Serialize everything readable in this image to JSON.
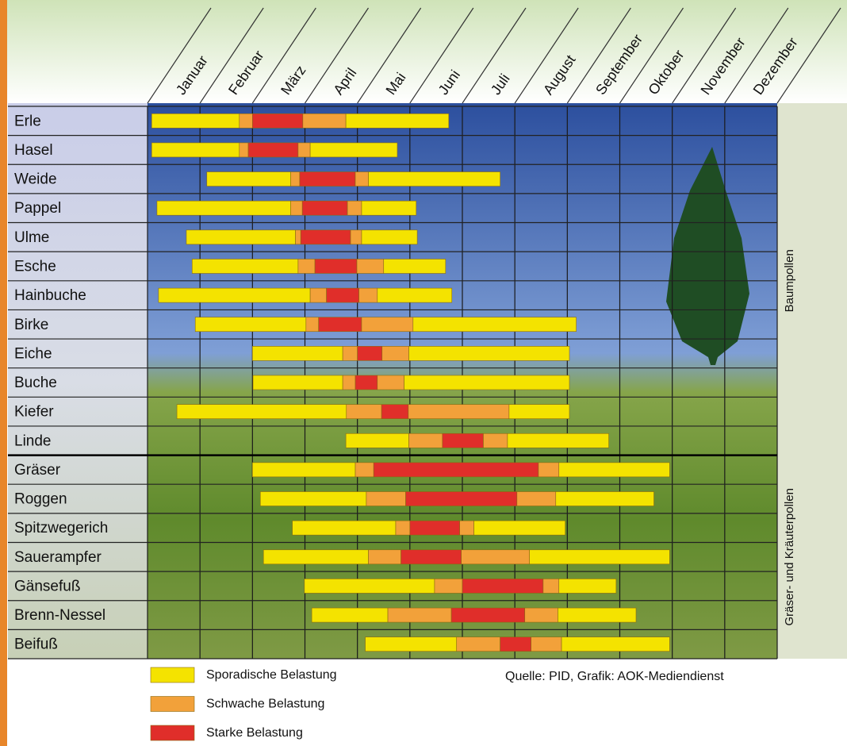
{
  "chart_data": {
    "type": "gantt",
    "categories": [
      "Januar",
      "Februar",
      "März",
      "April",
      "Mai",
      "Juni",
      "Juli",
      "August",
      "September",
      "Oktober",
      "November",
      "Dezember"
    ],
    "xlim": [
      0,
      12
    ],
    "series": [
      {
        "name": "Sporadische Belastung",
        "color": "#f4e300"
      },
      {
        "name": "Schwache Belastung",
        "color": "#f2a13a"
      },
      {
        "name": "Starke Belastung",
        "color": "#e02e2a"
      }
    ],
    "segment_levels": [
      0,
      1,
      2,
      1,
      0
    ],
    "groups": [
      {
        "name": "Baumpollen",
        "rows": [
          {
            "name": "Erle",
            "bounds": [
              0.08,
              1.75,
              2.0,
              2.96,
              3.78,
              5.74
            ]
          },
          {
            "name": "Hasel",
            "bounds": [
              0.08,
              1.75,
              1.92,
              2.87,
              3.1,
              4.76
            ]
          },
          {
            "name": "Weide",
            "bounds": [
              1.13,
              2.73,
              2.9,
              3.96,
              4.21,
              6.72
            ]
          },
          {
            "name": "Pappel",
            "bounds": [
              0.18,
              2.73,
              2.95,
              3.81,
              4.08,
              5.12
            ]
          },
          {
            "name": "Ulme",
            "bounds": [
              0.74,
              2.82,
              2.92,
              3.87,
              4.08,
              5.14
            ]
          },
          {
            "name": "Esche",
            "bounds": [
              0.85,
              2.87,
              3.19,
              3.99,
              4.5,
              5.68
            ]
          },
          {
            "name": "Hainbuche",
            "bounds": [
              0.21,
              3.1,
              3.41,
              4.03,
              4.38,
              5.8
            ]
          },
          {
            "name": "Birke",
            "bounds": [
              0.91,
              3.02,
              3.26,
              4.08,
              5.06,
              8.17
            ]
          },
          {
            "name": "Eiche",
            "bounds": [
              2.0,
              3.72,
              4.0,
              4.47,
              4.98,
              8.04
            ]
          },
          {
            "name": "Buche",
            "bounds": [
              2.01,
              3.72,
              3.96,
              4.38,
              4.89,
              8.04
            ]
          },
          {
            "name": "Kiefer",
            "bounds": [
              0.56,
              3.79,
              4.46,
              4.97,
              6.89,
              8.04
            ]
          },
          {
            "name": "Linde",
            "bounds": [
              3.78,
              4.98,
              5.62,
              6.4,
              6.86,
              8.79
            ]
          }
        ]
      },
      {
        "name": "Gräser- und Kräuterpollen",
        "rows": [
          {
            "name": "Gräser",
            "bounds": [
              2.0,
              3.96,
              4.31,
              7.45,
              7.84,
              9.95
            ]
          },
          {
            "name": "Roggen",
            "bounds": [
              2.15,
              4.17,
              4.92,
              7.04,
              7.78,
              9.65
            ]
          },
          {
            "name": "Spitzwegerich",
            "bounds": [
              2.76,
              4.73,
              5.0,
              5.95,
              6.22,
              7.96
            ]
          },
          {
            "name": "Sauerampfer",
            "bounds": [
              2.21,
              4.21,
              4.83,
              5.98,
              7.28,
              9.95
            ]
          },
          {
            "name": "Gänsefuß",
            "bounds": [
              2.99,
              5.47,
              6.0,
              7.54,
              7.84,
              8.93
            ]
          },
          {
            "name": "Brenn-Nessel",
            "bounds": [
              3.13,
              4.58,
              5.79,
              7.19,
              7.82,
              9.31
            ]
          },
          {
            "name": "Beifuß",
            "bounds": [
              4.15,
              5.89,
              6.72,
              7.31,
              7.89,
              9.95
            ]
          }
        ]
      }
    ],
    "source": "Quelle: PID, Grafik: AOK-Mediendienst"
  }
}
